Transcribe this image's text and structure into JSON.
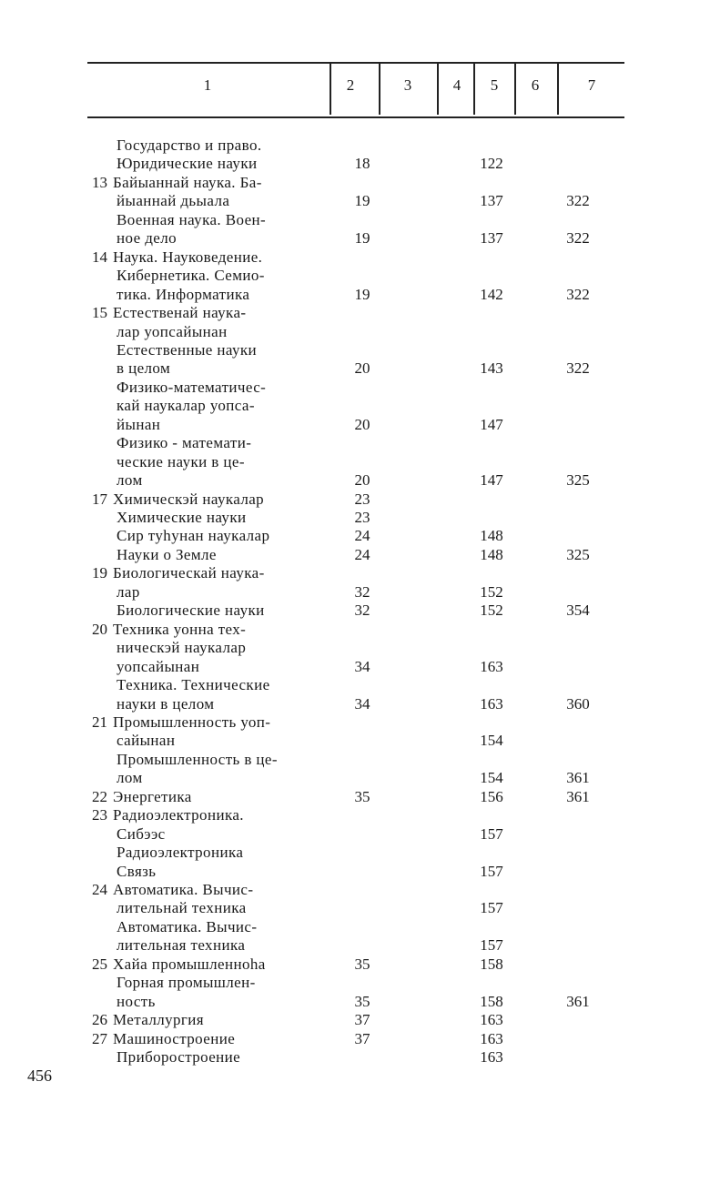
{
  "header": {
    "columns": [
      "1",
      "2",
      "3",
      "4",
      "5",
      "6",
      "7"
    ]
  },
  "rows": [
    {
      "num": "",
      "label": "Государство и право.",
      "c2": "",
      "c5": "",
      "c7": ""
    },
    {
      "num": "",
      "label": "Юридические науки",
      "c2": "18",
      "c5": "122",
      "c7": ""
    },
    {
      "num": "13",
      "label": "Байыаннай наука. Ба-",
      "c2": "",
      "c5": "",
      "c7": ""
    },
    {
      "num": "",
      "label": "йыаннай дьыала",
      "c2": "19",
      "c5": "137",
      "c7": "322"
    },
    {
      "num": "",
      "label": "Военная наука. Воен-",
      "c2": "",
      "c5": "",
      "c7": ""
    },
    {
      "num": "",
      "label": "ное дело",
      "c2": "19",
      "c5": "137",
      "c7": "322"
    },
    {
      "num": "14",
      "label": "Наука. Науковедение.",
      "c2": "",
      "c5": "",
      "c7": ""
    },
    {
      "num": "",
      "label": "Кибернетика. Семио-",
      "c2": "",
      "c5": "",
      "c7": ""
    },
    {
      "num": "",
      "label": "тика. Информатика",
      "c2": "19",
      "c5": "142",
      "c7": "322"
    },
    {
      "num": "15",
      "label": "Естественай наука-",
      "c2": "",
      "c5": "",
      "c7": ""
    },
    {
      "num": "",
      "label": "лар уопсайынан",
      "c2": "",
      "c5": "",
      "c7": ""
    },
    {
      "num": "",
      "label": "Естественные науки",
      "c2": "",
      "c5": "",
      "c7": ""
    },
    {
      "num": "",
      "label": "в целом",
      "c2": "20",
      "c5": "143",
      "c7": "322"
    },
    {
      "num": "",
      "label": "Физико-математичес-",
      "c2": "",
      "c5": "",
      "c7": ""
    },
    {
      "num": "",
      "label": "кай наукалар уопса-",
      "c2": "",
      "c5": "",
      "c7": ""
    },
    {
      "num": "",
      "label": "йынан",
      "c2": "20",
      "c5": "147",
      "c7": ""
    },
    {
      "num": "",
      "label": "Физико - математи-",
      "c2": "",
      "c5": "",
      "c7": ""
    },
    {
      "num": "",
      "label": "ческие науки в це-",
      "c2": "",
      "c5": "",
      "c7": ""
    },
    {
      "num": "",
      "label": "лом",
      "c2": "20",
      "c5": "147",
      "c7": "325"
    },
    {
      "num": "17",
      "label": "Химическэй наукалар",
      "c2": "23",
      "c5": "",
      "c7": ""
    },
    {
      "num": "",
      "label": "Химические науки",
      "c2": "23",
      "c5": "",
      "c7": ""
    },
    {
      "num": "",
      "label": "Сир туһунан наукалар",
      "c2": "24",
      "c5": "148",
      "c7": ""
    },
    {
      "num": "",
      "label": "Науки о Земле",
      "c2": "24",
      "c5": "148",
      "c7": "325"
    },
    {
      "num": "19",
      "label": "Биологическай наука-",
      "c2": "",
      "c5": "",
      "c7": ""
    },
    {
      "num": "",
      "label": "лар",
      "c2": "32",
      "c5": "152",
      "c7": ""
    },
    {
      "num": "",
      "label": "Биологические науки",
      "c2": "32",
      "c5": "152",
      "c7": "354"
    },
    {
      "num": "20",
      "label": "Техника уонна тех-",
      "c2": "",
      "c5": "",
      "c7": ""
    },
    {
      "num": "",
      "label": "ническэй наукалар",
      "c2": "",
      "c5": "",
      "c7": ""
    },
    {
      "num": "",
      "label": "уопсайынан",
      "c2": "34",
      "c5": "163",
      "c7": ""
    },
    {
      "num": "",
      "label": "Техника. Технические",
      "c2": "",
      "c5": "",
      "c7": ""
    },
    {
      "num": "",
      "label": "науки в целом",
      "c2": "34",
      "c5": "163",
      "c7": "360"
    },
    {
      "num": "21",
      "label": "Промышленность уоп-",
      "c2": "",
      "c5": "",
      "c7": ""
    },
    {
      "num": "",
      "label": "сайынан",
      "c2": "",
      "c5": "154",
      "c7": ""
    },
    {
      "num": "",
      "label": "Промышленность в це-",
      "c2": "",
      "c5": "",
      "c7": ""
    },
    {
      "num": "",
      "label": "лом",
      "c2": "",
      "c5": "154",
      "c7": "361"
    },
    {
      "num": "22",
      "label": "Энергетика",
      "c2": "35",
      "c5": "156",
      "c7": "361"
    },
    {
      "num": "23",
      "label": "Радиоэлектроника.",
      "c2": "",
      "c5": "",
      "c7": ""
    },
    {
      "num": "",
      "label": "Сибээс",
      "c2": "",
      "c5": "157",
      "c7": ""
    },
    {
      "num": "",
      "label": "Радиоэлектроника",
      "c2": "",
      "c5": "",
      "c7": ""
    },
    {
      "num": "",
      "label": "Связь",
      "c2": "",
      "c5": "157",
      "c7": ""
    },
    {
      "num": "24",
      "label": "Автоматика. Вычис-",
      "c2": "",
      "c5": "",
      "c7": ""
    },
    {
      "num": "",
      "label": "лительнай техника",
      "c2": "",
      "c5": "157",
      "c7": ""
    },
    {
      "num": "",
      "label": "Автоматика. Вычис-",
      "c2": "",
      "c5": "",
      "c7": ""
    },
    {
      "num": "",
      "label": "лительная техника",
      "c2": "",
      "c5": "157",
      "c7": ""
    },
    {
      "num": "25",
      "label": "Хайа промышленноһа",
      "c2": "35",
      "c5": "158",
      "c7": ""
    },
    {
      "num": "",
      "label": "Горная промышлен-",
      "c2": "",
      "c5": "",
      "c7": ""
    },
    {
      "num": "",
      "label": "ность",
      "c2": "35",
      "c5": "158",
      "c7": "361"
    },
    {
      "num": "26",
      "label": "Металлургия",
      "c2": "37",
      "c5": "163",
      "c7": ""
    },
    {
      "num": "27",
      "label": "Машиностроение",
      "c2": "37",
      "c5": "163",
      "c7": ""
    },
    {
      "num": "",
      "label": "Приборостроение",
      "c2": "",
      "c5": "163",
      "c7": ""
    }
  ],
  "page_number": "456"
}
